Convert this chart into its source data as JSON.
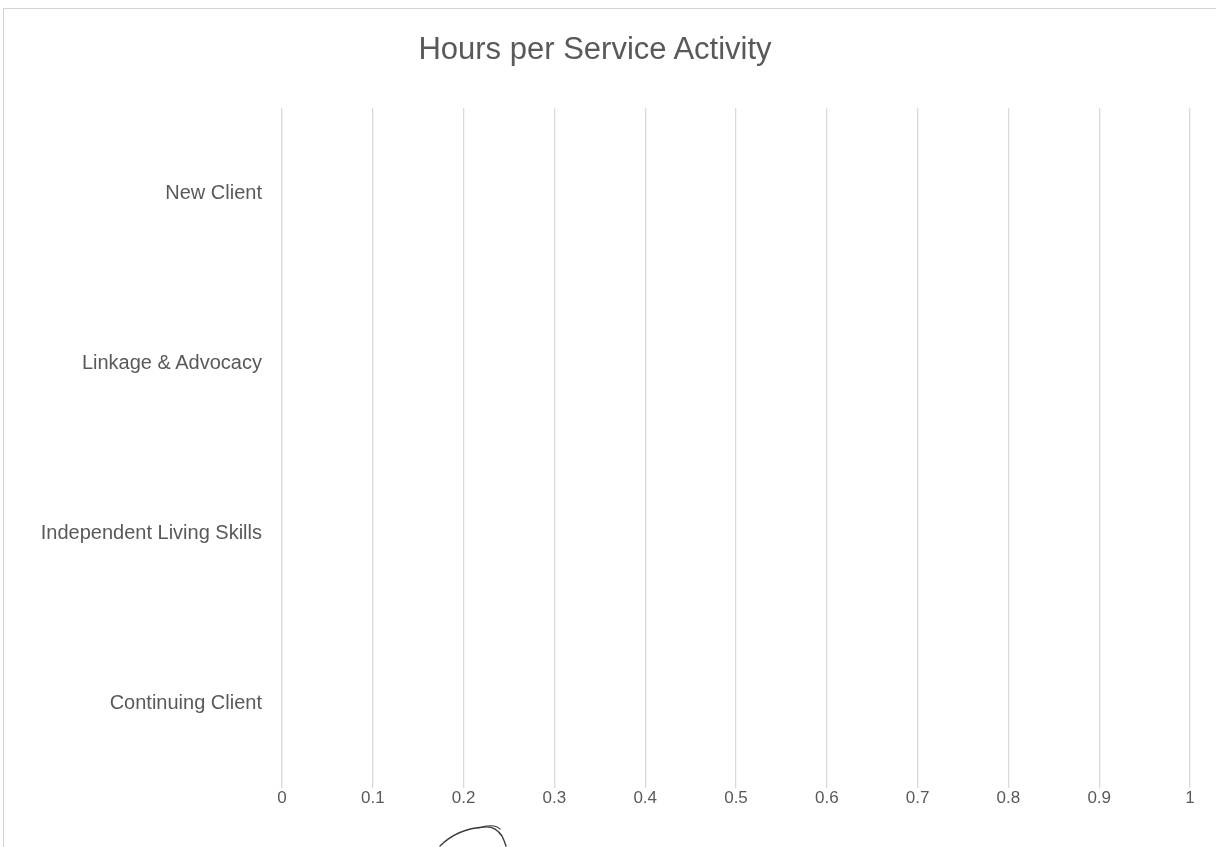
{
  "chart_data": {
    "type": "bar",
    "orientation": "horizontal",
    "title": "Hours per Service Activity",
    "categories": [
      "New Client",
      "Linkage & Advocacy",
      "Independent Living Skills",
      "Continuing Client"
    ],
    "values": [
      0,
      0,
      0,
      0
    ],
    "xlim": [
      0,
      1
    ],
    "xticks": [
      0,
      0.1,
      0.2,
      0.3,
      0.4,
      0.5,
      0.6,
      0.7,
      0.8,
      0.9,
      1
    ],
    "grid": "x"
  }
}
